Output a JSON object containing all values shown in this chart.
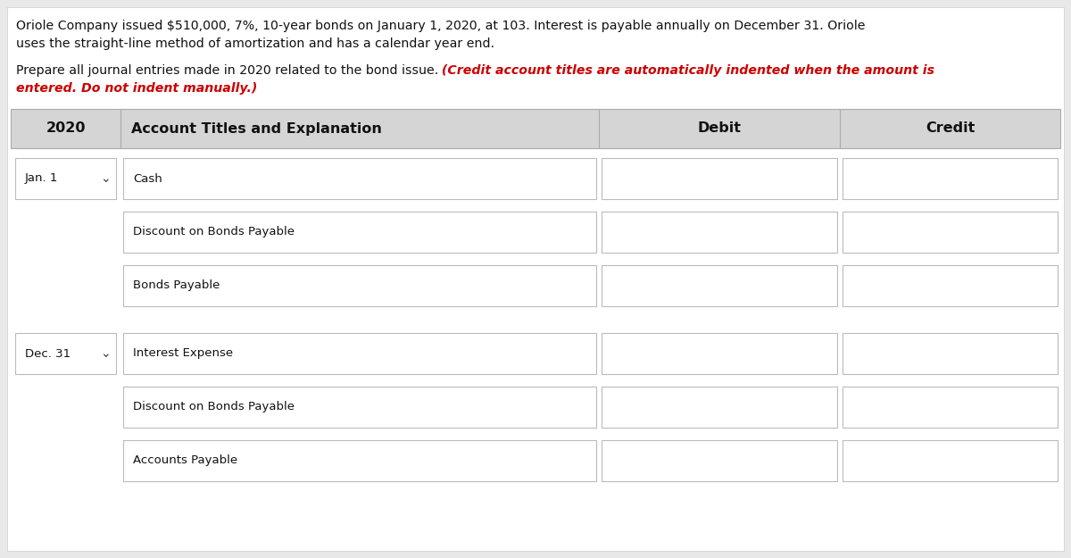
{
  "background_color": "#e8e8e8",
  "page_bg": "#ffffff",
  "header_text_line1": "Oriole Company issued $510,000, 7%, 10-year bonds on January 1, 2020, at 103. Interest is payable annually on December 31. Oriole",
  "header_text_line2": "uses the straight-line method of amortization and has a calendar year end.",
  "instruction_black": "Prepare all journal entries made in 2020 related to the bond issue.",
  "instruction_red_line1": " (Credit account titles are automatically indented when the amount is",
  "instruction_red_line2": "entered. Do not indent manually.)",
  "col_headers": [
    "2020",
    "Account Titles and Explanation",
    "Debit",
    "Credit"
  ],
  "col_header_bg": "#d5d5d5",
  "rows": [
    {
      "date": "Jan. 1",
      "account": "Cash"
    },
    {
      "date": "",
      "account": "Discount on Bonds Payable"
    },
    {
      "date": "",
      "account": "Bonds Payable"
    },
    {
      "date": "Dec. 31",
      "account": "Interest Expense"
    },
    {
      "date": "",
      "account": "Discount on Bonds Payable"
    },
    {
      "date": "",
      "account": "Accounts Payable"
    }
  ],
  "input_box_color": "#ffffff",
  "input_box_border": "#bbbbbb",
  "text_color": "#111111",
  "red_color": "#cc0000",
  "border_color": "#aaaaaa"
}
